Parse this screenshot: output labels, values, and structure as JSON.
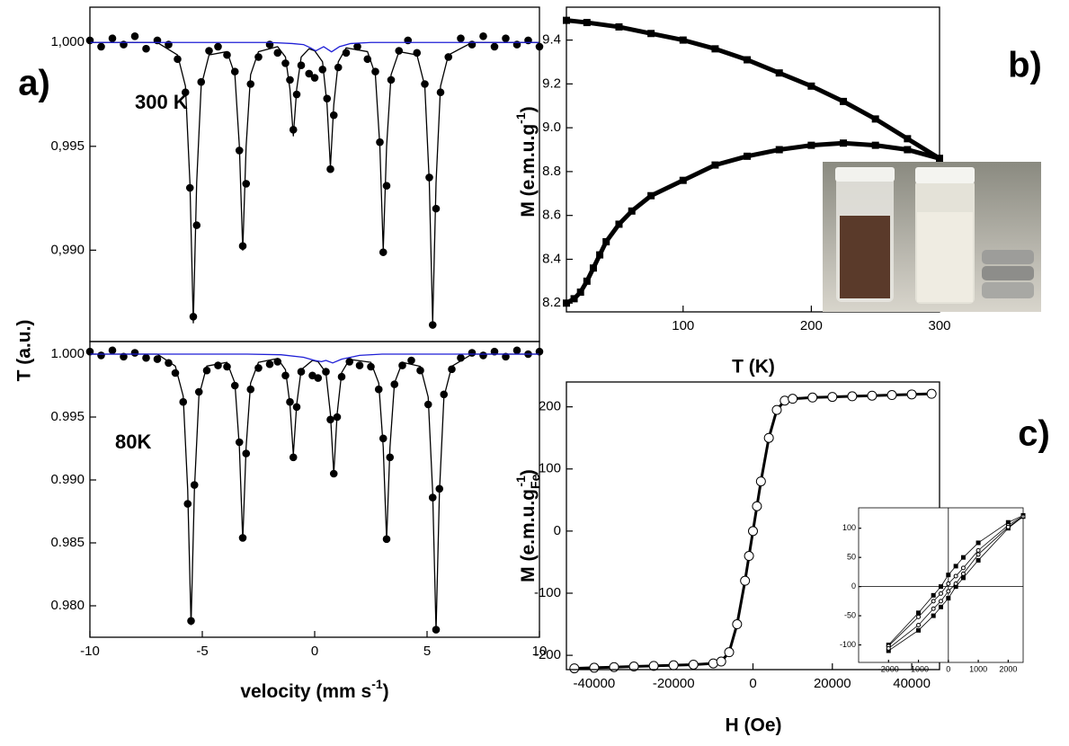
{
  "chart_data": [
    {
      "type": "scatter",
      "label": "a)",
      "annotation": "300 K",
      "ylabel": "T (a.u.)",
      "xlim": [
        -10,
        10
      ],
      "ylim": [
        0.9856,
        1.0017
      ],
      "yticks": [
        {
          "value": 1,
          "label": "1,000"
        },
        {
          "value": 0.995,
          "label": "0,995"
        },
        {
          "value": 0.99,
          "label": "0,990"
        }
      ],
      "series": [
        {
          "color": "#000000",
          "mode": "markers",
          "marker": "circle",
          "x": [
            -10,
            -9.5,
            -9,
            -8.5,
            -8,
            -7.5,
            -7,
            -6.5,
            -6.1,
            -5.75,
            -5.55,
            -5.4,
            -5.25,
            -5.05,
            -4.7,
            -4.3,
            -3.9,
            -3.55,
            -3.35,
            -3.2,
            -3.05,
            -2.85,
            -2.5,
            -2,
            -1.65,
            -1.3,
            -1.1,
            -0.95,
            -0.8,
            -0.6,
            -0.25,
            0,
            0.35,
            0.55,
            0.7,
            0.85,
            1.05,
            1.4,
            1.9,
            2.35,
            2.7,
            2.9,
            3.05,
            3.2,
            3.4,
            3.75,
            4.15,
            4.55,
            4.9,
            5.1,
            5.25,
            5.4,
            5.6,
            5.95,
            6.5,
            7,
            7.5,
            8,
            8.5,
            9,
            9.5,
            10
          ],
          "values": [
            1.0001,
            0.9998,
            1.0002,
            0.9999,
            1.0003,
            0.9997,
            1.0001,
            0.9999,
            0.9992,
            0.9976,
            0.993,
            0.9868,
            0.9912,
            0.9981,
            0.9996,
            0.9998,
            0.9994,
            0.9986,
            0.9948,
            0.9902,
            0.9932,
            0.998,
            0.9993,
            0.9999,
            0.9995,
            0.999,
            0.9982,
            0.9958,
            0.9975,
            0.9989,
            0.9985,
            0.9983,
            0.9987,
            0.9973,
            0.9939,
            0.9965,
            0.9988,
            0.9995,
            0.9998,
            0.9992,
            0.9986,
            0.9952,
            0.9899,
            0.9931,
            0.9982,
            0.9996,
            1.0001,
            0.9995,
            0.998,
            0.9935,
            0.9864,
            0.992,
            0.9976,
            0.9993,
            1.0002,
            0.9999,
            1.0003,
            0.9998,
            1.0002,
            0.9999,
            1.0001,
            0.9998
          ]
        },
        {
          "color": "#000000",
          "mode": "line",
          "x": [
            -10,
            -7,
            -6.1,
            -5.75,
            -5.55,
            -5.4,
            -5.25,
            -5.05,
            -4.7,
            -3.9,
            -3.55,
            -3.35,
            -3.2,
            -3.05,
            -2.85,
            -2.5,
            -1.65,
            -1.3,
            -1.1,
            -0.95,
            -0.8,
            -0.6,
            -0.25,
            0,
            0.35,
            0.55,
            0.7,
            0.85,
            1.05,
            1.4,
            2.35,
            2.7,
            2.9,
            3.05,
            3.2,
            3.4,
            3.75,
            4.55,
            4.9,
            5.1,
            5.25,
            5.4,
            5.6,
            5.95,
            7,
            10
          ],
          "values": [
            1,
            1,
            0.9994,
            0.9979,
            0.99325,
            0.9865,
            0.99325,
            0.9979,
            0.9994,
            0.99956,
            0.99845,
            0.995,
            0.99,
            0.995,
            0.99845,
            0.99956,
            0.9998,
            0.9993,
            0.99775,
            0.9955,
            0.99775,
            0.9993,
            0.9997,
            0.9996,
            0.99907,
            0.997,
            0.994,
            0.997,
            0.99907,
            0.99974,
            0.99956,
            0.99845,
            0.995,
            0.99,
            0.995,
            0.99845,
            0.99956,
            0.9994,
            0.9979,
            0.99325,
            0.9865,
            0.99325,
            0.9979,
            0.9994,
            1,
            1
          ]
        },
        {
          "color": "#1f1fd6",
          "mode": "line",
          "x": [
            -10,
            -2,
            -1,
            -0.5,
            -0.2,
            0.05,
            0.4,
            0.75,
            1.1,
            1.6,
            2.5,
            10
          ],
          "values": [
            1,
            1,
            0.99995,
            0.9999,
            0.99975,
            0.9996,
            0.9998,
            0.99955,
            0.9998,
            0.99995,
            1,
            1
          ]
        }
      ]
    },
    {
      "type": "scatter",
      "annotation": "80K",
      "xlabel": {
        "text": "velocity (mm s",
        "sup": "-1",
        "tail": ")"
      },
      "xlim": [
        -10,
        10
      ],
      "xticks": [
        -10,
        -5,
        0,
        5,
        10
      ],
      "ylim": [
        0.9775,
        1.001
      ],
      "yticks": [
        {
          "value": 1,
          "label": "1.000"
        },
        0.995,
        {
          "value": 0.99,
          "label": "0.990"
        },
        0.985,
        {
          "value": 0.98,
          "label": "0.980"
        }
      ],
      "series": [
        {
          "color": "#000000",
          "mode": "markers",
          "marker": "circle",
          "x": [
            -10,
            -9.5,
            -9,
            -8.5,
            -8,
            -7.5,
            -7,
            -6.5,
            -6.2,
            -5.85,
            -5.65,
            -5.5,
            -5.35,
            -5.15,
            -4.8,
            -4.3,
            -3.9,
            -3.55,
            -3.35,
            -3.2,
            -3.05,
            -2.85,
            -2.5,
            -2,
            -1.65,
            -1.3,
            -1.1,
            -0.95,
            -0.8,
            -0.6,
            -0.1,
            0.15,
            0.5,
            0.7,
            0.85,
            1,
            1.2,
            1.55,
            2,
            2.5,
            2.85,
            3.05,
            3.2,
            3.35,
            3.55,
            3.9,
            4.3,
            4.7,
            5.05,
            5.25,
            5.4,
            5.55,
            5.75,
            6.1,
            6.5,
            7,
            7.5,
            8,
            8.5,
            9,
            9.5,
            10
          ],
          "values": [
            1.0002,
            0.9999,
            1.0003,
            0.9998,
            1.0001,
            0.9997,
            0.9996,
            0.9993,
            0.9985,
            0.9962,
            0.9881,
            0.9788,
            0.9896,
            0.997,
            0.9987,
            0.9991,
            0.999,
            0.9975,
            0.993,
            0.9854,
            0.9921,
            0.9972,
            0.9989,
            0.9992,
            0.9994,
            0.9983,
            0.9962,
            0.9918,
            0.9958,
            0.9986,
            0.9983,
            0.9981,
            0.9986,
            0.9948,
            0.9905,
            0.995,
            0.9982,
            0.9994,
            0.9991,
            0.999,
            0.9972,
            0.9933,
            0.9853,
            0.9918,
            0.9976,
            0.9991,
            0.9995,
            0.9987,
            0.996,
            0.9886,
            0.9781,
            0.9893,
            0.9968,
            0.9988,
            0.9997,
            1.0001,
            0.9999,
            1.0002,
            0.9998,
            1.0003,
            1,
            1.0002
          ]
        },
        {
          "color": "#000000",
          "mode": "line",
          "x": [
            -10,
            -7,
            -6.2,
            -5.85,
            -5.65,
            -5.5,
            -5.35,
            -5.15,
            -4.8,
            -3.9,
            -3.55,
            -3.35,
            -3.2,
            -3.05,
            -2.85,
            -2.5,
            -1.65,
            -1.3,
            -1.1,
            -0.95,
            -0.8,
            -0.6,
            -0.1,
            0.15,
            0.5,
            0.7,
            0.85,
            1,
            1.2,
            1.55,
            2.5,
            2.85,
            3.05,
            3.2,
            3.35,
            3.55,
            3.9,
            4.7,
            5.05,
            5.25,
            5.4,
            5.55,
            5.75,
            6.1,
            7,
            10
          ],
          "values": [
            1,
            1,
            0.99905,
            0.99667,
            0.98925,
            0.9785,
            0.98925,
            0.99667,
            0.99905,
            0.99935,
            0.9977,
            0.9926,
            0.9852,
            0.9926,
            0.9977,
            0.99935,
            0.99965,
            0.99876,
            0.996,
            0.992,
            0.996,
            0.99876,
            0.9995,
            0.9994,
            0.99853,
            0.99525,
            0.9905,
            0.99525,
            0.99853,
            0.99958,
            0.99935,
            0.9977,
            0.9926,
            0.9852,
            0.9926,
            0.9977,
            0.99935,
            0.99903,
            0.99659,
            0.989,
            0.978,
            0.989,
            0.99659,
            0.99903,
            1,
            1
          ]
        },
        {
          "color": "#1f1fd6",
          "mode": "line",
          "x": [
            -10,
            -3,
            -1.5,
            -0.5,
            0,
            0.3,
            0.5,
            0.8,
            1.2,
            2,
            3,
            10
          ],
          "values": [
            1,
            1,
            0.99995,
            0.99975,
            0.9995,
            0.9994,
            0.9995,
            0.9993,
            0.9996,
            0.9999,
            1,
            1
          ]
        }
      ]
    },
    {
      "type": "line",
      "label": "b)",
      "xlabel": "T (K)",
      "ylabel": {
        "text": "M (e.m.u.g",
        "sup": "-1",
        "tail": ")"
      },
      "xlim": [
        9,
        300
      ],
      "xticks": [
        100,
        200,
        300
      ],
      "ylim": [
        8.16,
        9.55
      ],
      "yticks": [
        8.2,
        8.4,
        8.6,
        8.8,
        {
          "value": 9,
          "label": "9.0"
        },
        9.2,
        9.4
      ],
      "series": [
        {
          "color": "#000000",
          "mode": "line+markers",
          "marker": "square",
          "x": [
            9,
            25,
            50,
            75,
            100,
            125,
            150,
            175,
            200,
            225,
            250,
            275,
            300
          ],
          "values": [
            9.49,
            9.48,
            9.46,
            9.43,
            9.4,
            9.36,
            9.31,
            9.25,
            9.19,
            9.12,
            9.04,
            8.95,
            8.86
          ]
        },
        {
          "color": "#000000",
          "mode": "line+markers",
          "marker": "square",
          "x": [
            9,
            15,
            20,
            25,
            30,
            35,
            40,
            50,
            60,
            75,
            100,
            125,
            150,
            175,
            200,
            225,
            250,
            275,
            300
          ],
          "values": [
            8.2,
            8.22,
            8.25,
            8.3,
            8.36,
            8.42,
            8.48,
            8.56,
            8.62,
            8.69,
            8.76,
            8.83,
            8.87,
            8.9,
            8.92,
            8.93,
            8.92,
            8.9,
            8.86
          ]
        }
      ]
    },
    {
      "type": "line",
      "label": "c)",
      "xlabel": "H (Oe)",
      "ylabel": {
        "text": "M (e.m.u.g",
        "sub": "Fe",
        "sup": "-1",
        "tail": ")"
      },
      "xlim": [
        -47000,
        47000
      ],
      "xticks": [
        -40000,
        -20000,
        0,
        20000,
        40000
      ],
      "ylim": [
        -223,
        240
      ],
      "yticks": [
        -200,
        -100,
        0,
        100,
        200
      ],
      "series": [
        {
          "color": "#000000",
          "mode": "line+markers",
          "marker": "circle",
          "fill": "open",
          "x": [
            -45000,
            -40000,
            -35000,
            -30000,
            -25000,
            -20000,
            -15000,
            -10000,
            -8000,
            -6000,
            -4000,
            -2000,
            -1000,
            0,
            1000,
            2000,
            4000,
            6000,
            8000,
            10000,
            15000,
            20000,
            25000,
            30000,
            35000,
            40000,
            45000
          ],
          "values": [
            -221,
            -220,
            -219,
            -218,
            -217,
            -216,
            -215,
            -213,
            -210,
            -195,
            -150,
            -80,
            -40,
            0,
            40,
            80,
            150,
            195,
            210,
            213,
            215,
            216,
            217,
            218,
            219,
            220,
            221
          ]
        }
      ]
    },
    {
      "type": "line",
      "zero_lines": true,
      "xlim": [
        -3000,
        2500
      ],
      "xticks": [
        -2000,
        -1000,
        0,
        1000,
        2000
      ],
      "ylim": [
        -130,
        135
      ],
      "yticks": [
        -100,
        -50,
        0,
        50,
        100
      ],
      "series": [
        {
          "color": "#000000",
          "mode": "line+markers",
          "marker": "square",
          "x": [
            -2000,
            -1000,
            -500,
            -250,
            0,
            250,
            500,
            1000,
            2000,
            2500
          ],
          "values": [
            -100,
            -45,
            -15,
            0,
            20,
            35,
            50,
            75,
            110,
            122
          ]
        },
        {
          "color": "#000000",
          "mode": "line+markers",
          "marker": "square",
          "x": [
            -2000,
            -1000,
            -500,
            -250,
            0,
            250,
            500,
            1000,
            2000,
            2500
          ],
          "values": [
            -110,
            -75,
            -50,
            -35,
            -20,
            0,
            15,
            45,
            100,
            120
          ]
        },
        {
          "color": "#000000",
          "mode": "line+markers",
          "marker": "circle",
          "fill": "open",
          "x": [
            -2000,
            -1000,
            -500,
            -250,
            0,
            250,
            500,
            1000,
            2000,
            2500
          ],
          "values": [
            -102,
            -52,
            -25,
            -12,
            5,
            18,
            32,
            62,
            105,
            121
          ]
        },
        {
          "color": "#000000",
          "mode": "line+markers",
          "marker": "circle",
          "fill": "open",
          "x": [
            -2000,
            -1000,
            -500,
            -250,
            0,
            250,
            500,
            1000,
            2000,
            2500
          ],
          "values": [
            -106,
            -66,
            -38,
            -25,
            -8,
            5,
            22,
            55,
            102,
            120
          ]
        }
      ]
    }
  ]
}
